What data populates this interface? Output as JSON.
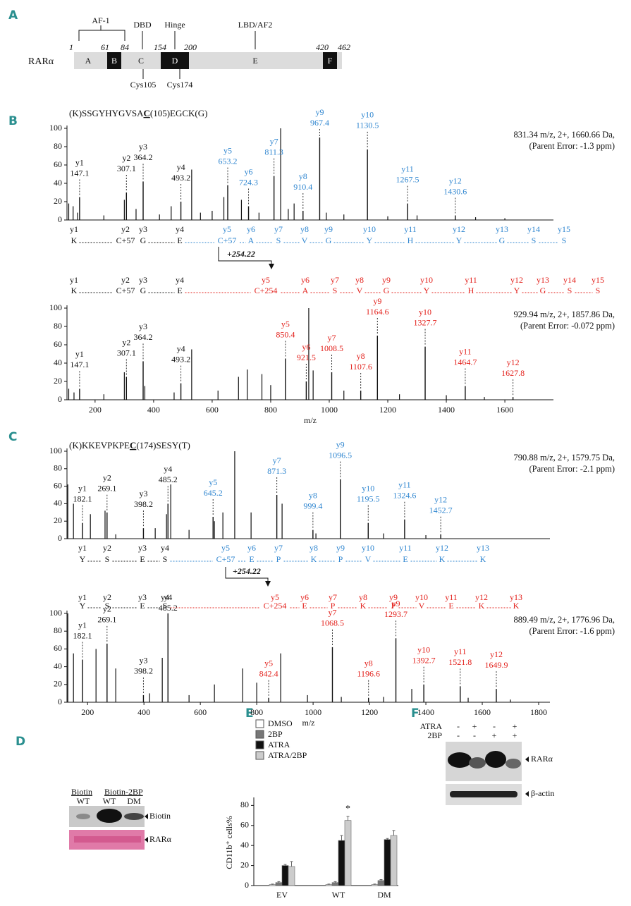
{
  "panel_a": {
    "label": "A",
    "protein": "RARα",
    "domains": [
      "A",
      "B",
      "C",
      "D",
      "E",
      "F"
    ],
    "positions": [
      1,
      61,
      84,
      154,
      200,
      420,
      462
    ],
    "regions": [
      "AF-1",
      "DBD",
      "Hinge",
      "LBD/AF2"
    ],
    "cysteines": [
      "Cys105",
      "Cys174"
    ]
  },
  "panel_b": {
    "label": "B",
    "peptide": [
      "(K)SSGYHYGVSA",
      "C",
      "(105)EGCK(G)"
    ],
    "shift": "+254.22",
    "spectra": [
      {
        "info": [
          "831.34 m/z, 2+, 1660.66 Da,",
          "(Parent Error: -1.3 ppm)"
        ],
        "xlim": [
          104,
          1766
        ],
        "ylim": [
          0,
          100
        ],
        "yticks": [
          0,
          20,
          40,
          60,
          80,
          100
        ],
        "ions": [
          {
            "name": "y1",
            "mz": 147.1,
            "intensity": 25,
            "color": "#111111"
          },
          {
            "name": "y2",
            "mz": 307.1,
            "intensity": 30,
            "color": "#111111"
          },
          {
            "name": "y3",
            "mz": 364.2,
            "intensity": 42,
            "color": "#111111"
          },
          {
            "name": "y4",
            "mz": 493.2,
            "intensity": 20,
            "color": "#111111"
          },
          {
            "name": "y5",
            "mz": 653.2,
            "intensity": 38,
            "color": "#2f86d0"
          },
          {
            "name": "y6",
            "mz": 724.3,
            "intensity": 15,
            "color": "#2f86d0"
          },
          {
            "name": "y7",
            "mz": 811.3,
            "intensity": 48,
            "color": "#2f86d0"
          },
          {
            "name": "y8",
            "mz": 910.4,
            "intensity": 10,
            "color": "#2f86d0"
          },
          {
            "name": "y9",
            "mz": 967.4,
            "intensity": 90,
            "color": "#2f86d0"
          },
          {
            "name": "y10",
            "mz": 1130.5,
            "intensity": 77,
            "color": "#2f86d0"
          },
          {
            "name": "y11",
            "mz": 1267.5,
            "intensity": 18,
            "color": "#2f86d0"
          },
          {
            "name": "y12",
            "mz": 1430.6,
            "intensity": 5,
            "color": "#2f86d0"
          }
        ],
        "peaks": {
          "mz": [
            110,
            125,
            140,
            230,
            300,
            340,
            420,
            460,
            530,
            560,
            600,
            640,
            700,
            760,
            834,
            860,
            880,
            990,
            1050,
            1200,
            1300,
            1500,
            1600
          ],
          "intensity": [
            18,
            15,
            8,
            5,
            22,
            12,
            6,
            15,
            55,
            8,
            10,
            25,
            22,
            8,
            100,
            12,
            18,
            8,
            6,
            4,
            5,
            3,
            2
          ]
        }
      },
      {
        "info": [
          "929.94 m/z, 2+, 1857.86 Da,",
          "(Parent Error: -0.072 ppm)"
        ],
        "xlim": [
          104,
          1766
        ],
        "ylim": [
          0,
          100
        ],
        "yticks": [
          0,
          20,
          40,
          60,
          80,
          100
        ],
        "xticks": [
          200,
          400,
          600,
          800,
          1000,
          1200,
          1400,
          1600
        ],
        "xlabel": "m/z",
        "ions": [
          {
            "name": "y1",
            "mz": 147.1,
            "intensity": 12,
            "color": "#111111"
          },
          {
            "name": "y2",
            "mz": 307.1,
            "intensity": 25,
            "color": "#111111"
          },
          {
            "name": "y3",
            "mz": 364.2,
            "intensity": 42,
            "color": "#111111"
          },
          {
            "name": "y4",
            "mz": 493.2,
            "intensity": 18,
            "color": "#111111"
          },
          {
            "name": "y5",
            "mz": 850.4,
            "intensity": 45,
            "color": "#e3201b"
          },
          {
            "name": "y6",
            "mz": 921.5,
            "intensity": 20,
            "color": "#e3201b"
          },
          {
            "name": "y7",
            "mz": 1008.5,
            "intensity": 30,
            "color": "#e3201b"
          },
          {
            "name": "y8",
            "mz": 1107.6,
            "intensity": 10,
            "color": "#e3201b"
          },
          {
            "name": "y9",
            "mz": 1164.6,
            "intensity": 70,
            "color": "#e3201b"
          },
          {
            "name": "y10",
            "mz": 1327.7,
            "intensity": 58,
            "color": "#e3201b"
          },
          {
            "name": "y11",
            "mz": 1464.7,
            "intensity": 15,
            "color": "#e3201b"
          },
          {
            "name": "y12",
            "mz": 1627.8,
            "intensity": 3,
            "color": "#e3201b"
          }
        ],
        "peaks": {
          "mz": [
            110,
            128,
            230,
            300,
            370,
            470,
            530,
            620,
            690,
            720,
            770,
            800,
            930,
            945,
            1050,
            1240,
            1400,
            1530
          ],
          "intensity": [
            12,
            8,
            6,
            30,
            15,
            8,
            55,
            10,
            25,
            33,
            28,
            16,
            100,
            32,
            10,
            6,
            5,
            3
          ]
        }
      }
    ],
    "ladders": [
      {
        "ions": [
          "y1",
          "y2",
          "y3",
          "y4",
          "y5",
          "y6",
          "y7",
          "y8",
          "y9",
          "y10",
          "y11",
          "y12",
          "y13",
          "y14",
          "y15"
        ],
        "residues": [
          "K",
          "C+57",
          "G",
          "E",
          "C+57",
          "A",
          "S",
          "V",
          "G",
          "Y",
          "H",
          "Y",
          "G",
          "S",
          "S"
        ],
        "colors": [
          "#111111",
          "#111111",
          "#111111",
          "#111111",
          "#2f86d0",
          "#2f86d0",
          "#2f86d0",
          "#2f86d0",
          "#2f86d0",
          "#2f86d0",
          "#2f86d0",
          "#2f86d0",
          "#2f86d0",
          "#2f86d0",
          "#2f86d0"
        ]
      },
      {
        "ions": [
          "y1",
          "y2",
          "y3",
          "y4",
          "y5",
          "y6",
          "y7",
          "y8",
          "y9",
          "y10",
          "y11",
          "y12",
          "y13",
          "y14",
          "y15"
        ],
        "residues": [
          "K",
          "C+57",
          "G",
          "E",
          "C+254",
          "A",
          "S",
          "V",
          "G",
          "Y",
          "H",
          "Y",
          "G",
          "S",
          "S"
        ],
        "colors": [
          "#111111",
          "#111111",
          "#111111",
          "#111111",
          "#e3201b",
          "#e3201b",
          "#e3201b",
          "#e3201b",
          "#e3201b",
          "#e3201b",
          "#e3201b",
          "#e3201b",
          "#e3201b",
          "#e3201b",
          "#e3201b"
        ]
      }
    ]
  },
  "panel_c": {
    "label": "C",
    "peptide": [
      "(K)KKEVPKPE",
      "C",
      "(174)SESY(T)"
    ],
    "shift": "+254.22",
    "spectra": [
      {
        "info": [
          "790.88 m/z, 2+, 1579.75 Da,",
          "(Parent Error: -2.1 ppm)"
        ],
        "xlim": [
          127,
          1840
        ],
        "ylim": [
          0,
          100
        ],
        "yticks": [
          0,
          20,
          40,
          60,
          80,
          100
        ],
        "ions": [
          {
            "name": "y1",
            "mz": 182.1,
            "intensity": 18,
            "color": "#111111"
          },
          {
            "name": "y2",
            "mz": 269.1,
            "intensity": 30,
            "color": "#111111"
          },
          {
            "name": "y3",
            "mz": 398.2,
            "intensity": 12,
            "color": "#111111"
          },
          {
            "name": "y4",
            "mz": 485.2,
            "intensity": 40,
            "color": "#111111"
          },
          {
            "name": "y5",
            "mz": 645.2,
            "intensity": 25,
            "color": "#2f86d0"
          },
          {
            "name": "y7",
            "mz": 871.3,
            "intensity": 50,
            "color": "#2f86d0"
          },
          {
            "name": "y8",
            "mz": 999.4,
            "intensity": 10,
            "color": "#2f86d0"
          },
          {
            "name": "y9",
            "mz": 1096.5,
            "intensity": 68,
            "color": "#2f86d0"
          },
          {
            "name": "y10",
            "mz": 1195.5,
            "intensity": 18,
            "color": "#2f86d0"
          },
          {
            "name": "y11",
            "mz": 1324.6,
            "intensity": 22,
            "color": "#2f86d0"
          },
          {
            "name": "y12",
            "mz": 1452.7,
            "intensity": 5,
            "color": "#2f86d0"
          }
        ],
        "peaks": {
          "mz": [
            130,
            150,
            210,
            262,
            300,
            440,
            480,
            495,
            560,
            650,
            680,
            722,
            780,
            890,
            1010,
            1250,
            1400
          ],
          "intensity": [
            62,
            40,
            28,
            32,
            5,
            12,
            28,
            62,
            10,
            20,
            30,
            100,
            30,
            40,
            6,
            6,
            4
          ]
        }
      },
      {
        "info": [
          "889.49 m/z, 2+, 1776.96 Da,",
          "(Parent Error: -1.6 ppm)"
        ],
        "xlim": [
          127,
          1840
        ],
        "ylim": [
          0,
          100
        ],
        "yticks": [
          0,
          20,
          40,
          60,
          80,
          100
        ],
        "xticks": [
          200,
          400,
          600,
          800,
          1000,
          1200,
          1400,
          1600,
          1800
        ],
        "xlabel": "m/z",
        "ions": [
          {
            "name": "y1",
            "mz": 182.1,
            "intensity": 48,
            "color": "#111111"
          },
          {
            "name": "y2",
            "mz": 269.1,
            "intensity": 66,
            "color": "#111111"
          },
          {
            "name": "y3",
            "mz": 398.2,
            "intensity": 8,
            "color": "#111111"
          },
          {
            "name": "y4",
            "mz": 485.2,
            "intensity": 100,
            "color": "#111111"
          },
          {
            "name": "y5",
            "mz": 842.4,
            "intensity": 5,
            "color": "#e3201b"
          },
          {
            "name": "y7",
            "mz": 1068.5,
            "intensity": 62,
            "color": "#e3201b"
          },
          {
            "name": "y8",
            "mz": 1196.6,
            "intensity": 5,
            "color": "#e3201b"
          },
          {
            "name": "y9",
            "mz": 1293.7,
            "intensity": 72,
            "color": "#e3201b"
          },
          {
            "name": "y10",
            "mz": 1392.7,
            "intensity": 20,
            "color": "#e3201b"
          },
          {
            "name": "y11",
            "mz": 1521.8,
            "intensity": 18,
            "color": "#e3201b"
          },
          {
            "name": "y12",
            "mz": 1649.9,
            "intensity": 15,
            "color": "#e3201b"
          }
        ],
        "peaks": {
          "mz": [
            130,
            150,
            230,
            300,
            420,
            465,
            560,
            650,
            750,
            800,
            885,
            980,
            1100,
            1250,
            1350,
            1550,
            1700
          ],
          "intensity": [
            100,
            55,
            60,
            38,
            10,
            50,
            8,
            20,
            38,
            22,
            55,
            8,
            6,
            6,
            15,
            5,
            3
          ]
        }
      }
    ],
    "ladders": [
      {
        "ions": [
          "y1",
          "y2",
          "y3",
          "y4",
          "y5",
          "y6",
          "y7",
          "y8",
          "y9",
          "y10",
          "y11",
          "y12",
          "y13"
        ],
        "residues": [
          "Y",
          "S",
          "E",
          "S",
          "C+57",
          "E",
          "P",
          "K",
          "P",
          "V",
          "E",
          "K",
          "K"
        ],
        "colors": [
          "#111111",
          "#111111",
          "#111111",
          "#111111",
          "#2f86d0",
          "#2f86d0",
          "#2f86d0",
          "#2f86d0",
          "#2f86d0",
          "#2f86d0",
          "#2f86d0",
          "#2f86d0",
          "#2f86d0"
        ]
      },
      {
        "ions": [
          "y1",
          "y2",
          "y3",
          "y4",
          "y5",
          "y6",
          "y7",
          "y8",
          "y9",
          "y10",
          "y11",
          "y12",
          "y13"
        ],
        "residues": [
          "Y",
          "S",
          "E",
          "S",
          "C+254",
          "E",
          "P",
          "K",
          "P",
          "V",
          "E",
          "K",
          "K"
        ],
        "colors": [
          "#111111",
          "#111111",
          "#111111",
          "#111111",
          "#e3201b",
          "#e3201b",
          "#e3201b",
          "#e3201b",
          "#e3201b",
          "#e3201b",
          "#e3201b",
          "#e3201b",
          "#e3201b"
        ]
      }
    ]
  },
  "panel_d": {
    "label": "D",
    "groups": [
      "Biotin",
      "Biotin-2BP"
    ],
    "lanes": [
      "WT",
      "WT",
      "DM"
    ],
    "blots": [
      "Biotin",
      "RARα"
    ]
  },
  "panel_e": {
    "label": "E",
    "ylabel": "CD11b⁺ cells%",
    "ylim": [
      0,
      88
    ],
    "yticks": [
      0,
      20,
      40,
      60,
      80
    ],
    "categories": [
      "EV",
      "WT",
      "DM"
    ],
    "annotation": "*",
    "series": [
      {
        "name": "DMSO",
        "color": "#ffffff",
        "values": [
          1,
          1,
          1
        ],
        "errors": [
          0.5,
          0.5,
          0.5
        ]
      },
      {
        "name": "2BP",
        "color": "#777777",
        "values": [
          3,
          3,
          5
        ],
        "errors": [
          1,
          1,
          1
        ]
      },
      {
        "name": "ATRA",
        "color": "#111111",
        "values": [
          20,
          45,
          46
        ],
        "errors": [
          1,
          5,
          1
        ]
      },
      {
        "name": "ATRA/2BP",
        "color": "#cccccc",
        "values": [
          19,
          65,
          50
        ],
        "errors": [
          5,
          4,
          5
        ]
      }
    ]
  },
  "panel_f": {
    "label": "F",
    "treatments": [
      {
        "name": "ATRA",
        "signs": [
          "-",
          "+",
          "-",
          "+"
        ]
      },
      {
        "name": "2BP",
        "signs": [
          "-",
          "-",
          "+",
          "+"
        ]
      }
    ],
    "blots": [
      "RARα",
      "β-actin"
    ]
  }
}
